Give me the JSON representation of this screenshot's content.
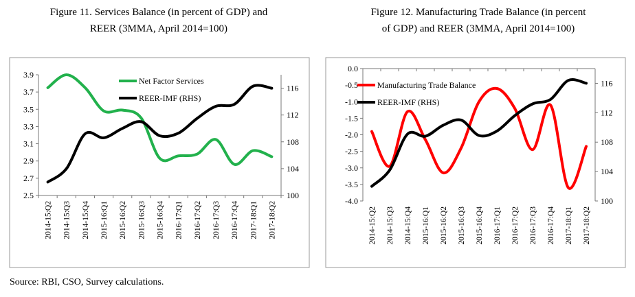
{
  "source": "Source: RBI, CSO, Survey calculations.",
  "chart_data": [
    {
      "type": "line",
      "title_line1": "Figure 11. Services Balance (in percent of GDP) and",
      "title_line2": "REER (3MMA, April 2014=100)",
      "categories": [
        "2014-15:Q2",
        "2014-15:Q3",
        "2014-15:Q4",
        "2015-16:Q1",
        "2015-16:Q2",
        "2015-16:Q3",
        "2015-16:Q4",
        "2016-17:Q1",
        "2016-17:Q2",
        "2016-17:Q3",
        "2016-17:Q4",
        "2017-18:Q1",
        "2017-18:Q2"
      ],
      "ylim": [
        2.5,
        3.9
      ],
      "yticks": [
        "2.5",
        "2.7",
        "2.9",
        "3.1",
        "3.3",
        "3.5",
        "3.7",
        "3.9"
      ],
      "y2lim": [
        100,
        118
      ],
      "y2ticks": [
        "100",
        "104",
        "108",
        "112",
        "116"
      ],
      "legend_position": "top-center",
      "series": [
        {
          "name": "Net Factor Services",
          "color": "#22b14c",
          "axis": "left",
          "values": [
            3.75,
            3.9,
            3.75,
            3.48,
            3.49,
            3.4,
            2.93,
            2.96,
            2.98,
            3.15,
            2.86,
            3.02,
            2.95
          ]
        },
        {
          "name": "REER-IMF (RHS)",
          "color": "#000000",
          "axis": "right",
          "values": [
            102.0,
            104.0,
            109.2,
            108.6,
            110.0,
            111.0,
            108.9,
            109.3,
            111.5,
            113.3,
            113.6,
            116.3,
            116.0
          ]
        }
      ]
    },
    {
      "type": "line",
      "title_line1": "Figure 12. Manufacturing Trade Balance (in percent",
      "title_line2": "of GDP) and REER  (3MMA, April 2014=100)",
      "categories": [
        "2014-15:Q2",
        "2014-15:Q3",
        "2014-15:Q4",
        "2015-16:Q1",
        "2015-16:Q2",
        "2015-16:Q3",
        "2015-16:Q4",
        "2016-17:Q1",
        "2016-17:Q2",
        "2016-17:Q3",
        "2016-17:Q4",
        "2017-18:Q1",
        "2017-18:Q2"
      ],
      "ylim": [
        -4.0,
        0.0
      ],
      "yticks": [
        "-4.0",
        "-3.5",
        "-3.0",
        "-2.5",
        "-2.0",
        "-1.5",
        "-1.0",
        "-0.5",
        "0.0"
      ],
      "y2lim": [
        100,
        118
      ],
      "y2ticks": [
        "100",
        "104",
        "108",
        "112",
        "116"
      ],
      "legend_position": "top-left",
      "series": [
        {
          "name": "Manufacturing Trade Balance",
          "color": "#ff0000",
          "axis": "left",
          "values": [
            -1.9,
            -2.95,
            -1.3,
            -2.15,
            -3.15,
            -2.4,
            -1.0,
            -0.6,
            -1.2,
            -2.45,
            -1.1,
            -3.6,
            -2.35
          ]
        },
        {
          "name": "REER-IMF (RHS)",
          "color": "#000000",
          "axis": "right",
          "values": [
            102.0,
            104.2,
            109.1,
            108.8,
            110.3,
            111.0,
            108.9,
            109.5,
            111.6,
            113.2,
            113.8,
            116.4,
            116.0
          ]
        }
      ]
    }
  ]
}
